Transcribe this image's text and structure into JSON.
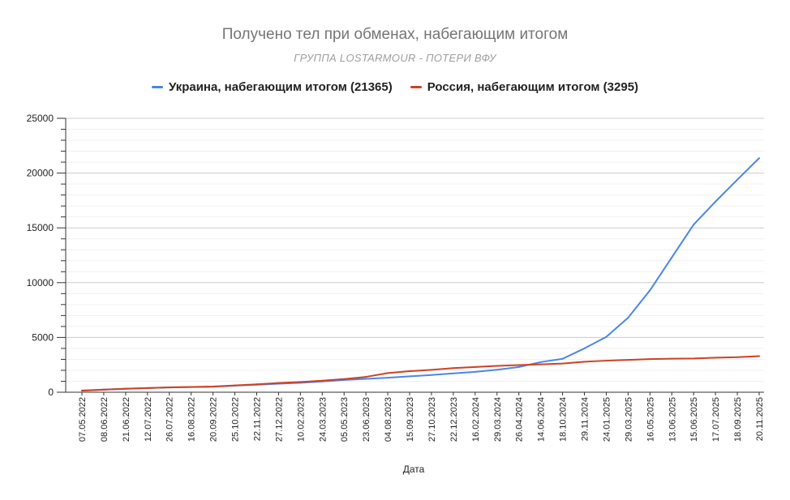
{
  "chart_data": {
    "type": "line",
    "title": "Получено тел при обменах, набегающим итогом",
    "subtitle": "ГРУППА LOSTARMOUR - ПОТЕРИ ВФУ",
    "xlabel": "Дата",
    "ylabel": "",
    "ylim": [
      0,
      25000
    ],
    "yticks": [
      "0",
      "5000",
      "10000",
      "15000",
      "20000",
      "25000"
    ],
    "grid": true,
    "legend_position": "top",
    "categories": [
      "07.05.2022",
      "08.06.2022",
      "21.06.2022",
      "12.07.2022",
      "26.07.2022",
      "16.08.2022",
      "20.09.2022",
      "25.10.2022",
      "22.11.2022",
      "27.12.2022",
      "10.02.2023",
      "24.03.2023",
      "05.05.2023",
      "23.06.2023",
      "04.08.2023",
      "15.09.2023",
      "27.10.2023",
      "22.12.2023",
      "16.02.2024",
      "29.03.2024",
      "26.04.2024",
      "14.06.2024",
      "18.10.2024",
      "29.11.2024",
      "24.01.2025",
      "29.03.2025",
      "16.05.2025",
      "13.06.2025",
      "15.06.2025",
      "17.07.2025",
      "18.09.2025",
      "20.11.2025"
    ],
    "series": [
      {
        "name": "Украина, набегающим итогом (21365)",
        "color": "#4a86e8",
        "values": [
          160,
          240,
          320,
          380,
          430,
          470,
          500,
          600,
          680,
          780,
          860,
          980,
          1120,
          1220,
          1320,
          1450,
          1570,
          1720,
          1860,
          2050,
          2300,
          2750,
          3050,
          4000,
          5050,
          6800,
          9300,
          12300,
          15300,
          17400,
          19400,
          21365
        ]
      },
      {
        "name": "Россия, набегающим итогом (3295)",
        "color": "#cc4125",
        "values": [
          140,
          230,
          310,
          380,
          440,
          480,
          520,
          620,
          720,
          840,
          930,
          1050,
          1200,
          1400,
          1750,
          1920,
          2040,
          2200,
          2300,
          2400,
          2480,
          2540,
          2620,
          2780,
          2880,
          2950,
          3020,
          3060,
          3080,
          3150,
          3200,
          3295
        ]
      }
    ]
  }
}
